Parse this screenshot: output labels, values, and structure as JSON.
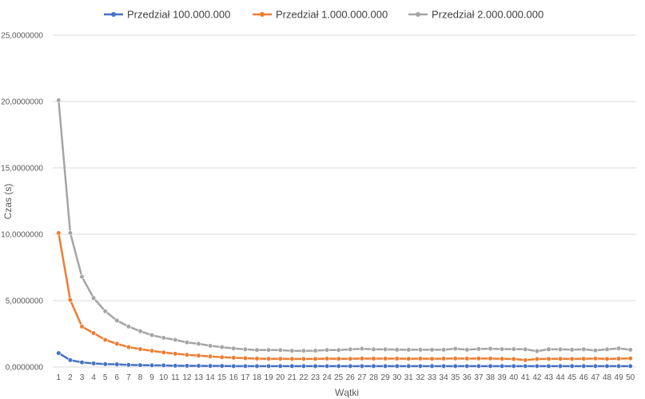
{
  "chart_data": {
    "type": "line",
    "xlabel": "Wątki",
    "ylabel": "Czas (s)",
    "ylim": [
      0,
      25
    ],
    "yticks": [
      "0,0000000",
      "5,0000000",
      "10,0000000",
      "15,0000000",
      "20,0000000",
      "25,0000000"
    ],
    "grid": true,
    "legend_position": "top",
    "x": [
      1,
      2,
      3,
      4,
      5,
      6,
      7,
      8,
      9,
      10,
      11,
      12,
      13,
      14,
      15,
      16,
      17,
      18,
      19,
      20,
      21,
      22,
      23,
      24,
      25,
      26,
      27,
      28,
      29,
      30,
      31,
      32,
      33,
      34,
      35,
      36,
      37,
      38,
      39,
      40,
      41,
      42,
      43,
      44,
      45,
      46,
      47,
      48,
      49,
      50
    ],
    "series": [
      {
        "name": "Przedział 100.000.000",
        "color": "#4472c4",
        "values": [
          1.05,
          0.52,
          0.35,
          0.27,
          0.22,
          0.2,
          0.16,
          0.14,
          0.13,
          0.12,
          0.1,
          0.09,
          0.09,
          0.08,
          0.08,
          0.07,
          0.07,
          0.07,
          0.07,
          0.07,
          0.07,
          0.07,
          0.07,
          0.07,
          0.07,
          0.07,
          0.07,
          0.07,
          0.07,
          0.07,
          0.07,
          0.07,
          0.07,
          0.07,
          0.07,
          0.07,
          0.07,
          0.07,
          0.07,
          0.07,
          0.07,
          0.07,
          0.07,
          0.07,
          0.07,
          0.07,
          0.07,
          0.07,
          0.07,
          0.07
        ]
      },
      {
        "name": "Przedział 1.000.000.000",
        "color": "#ed7d31",
        "values": [
          10.1,
          5.05,
          3.05,
          2.55,
          2.05,
          1.75,
          1.5,
          1.35,
          1.22,
          1.1,
          1.0,
          0.92,
          0.86,
          0.8,
          0.74,
          0.7,
          0.66,
          0.63,
          0.62,
          0.62,
          0.61,
          0.61,
          0.61,
          0.63,
          0.62,
          0.62,
          0.64,
          0.63,
          0.63,
          0.63,
          0.62,
          0.63,
          0.62,
          0.63,
          0.64,
          0.63,
          0.64,
          0.64,
          0.62,
          0.6,
          0.52,
          0.6,
          0.61,
          0.62,
          0.61,
          0.62,
          0.64,
          0.61,
          0.63,
          0.65
        ]
      },
      {
        "name": "Przedział 2.000.000.000",
        "color": "#a5a5a5",
        "values": [
          20.1,
          10.1,
          6.8,
          5.2,
          4.2,
          3.5,
          3.05,
          2.7,
          2.4,
          2.2,
          2.05,
          1.85,
          1.75,
          1.6,
          1.5,
          1.4,
          1.33,
          1.28,
          1.28,
          1.27,
          1.22,
          1.22,
          1.23,
          1.28,
          1.28,
          1.33,
          1.38,
          1.33,
          1.33,
          1.3,
          1.3,
          1.3,
          1.3,
          1.3,
          1.38,
          1.3,
          1.36,
          1.38,
          1.35,
          1.35,
          1.33,
          1.2,
          1.33,
          1.33,
          1.3,
          1.33,
          1.25,
          1.33,
          1.4,
          1.3
        ]
      }
    ]
  }
}
